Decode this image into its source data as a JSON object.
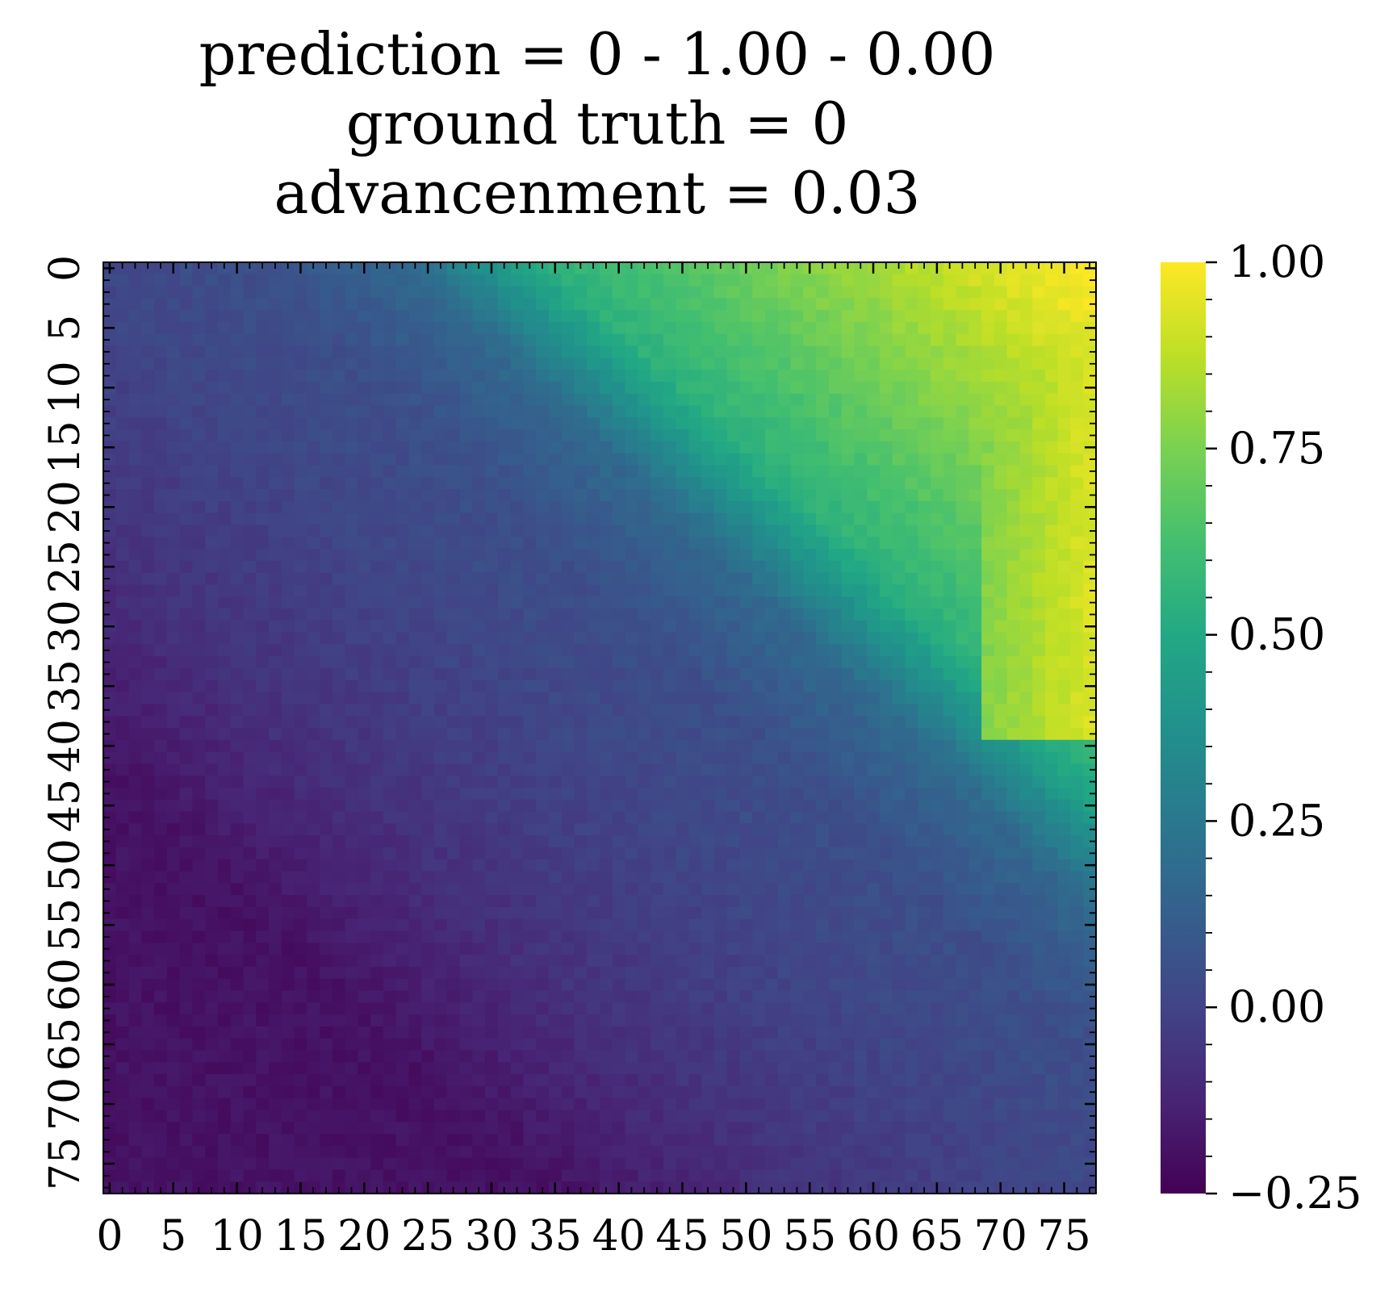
{
  "chart_data": {
    "type": "heatmap",
    "title_lines": [
      "prediction = 0 - 1.00 - 0.00",
      "ground truth = 0",
      "advancenment = 0.03"
    ],
    "xlabel": "",
    "ylabel": "",
    "grid_size": [
      78,
      78
    ],
    "x_tick_labels": [
      "0",
      "5",
      "10",
      "15",
      "20",
      "25",
      "30",
      "35",
      "40",
      "45",
      "50",
      "55",
      "60",
      "65",
      "70",
      "75"
    ],
    "y_tick_labels": [
      "0",
      "5",
      "10",
      "15",
      "20",
      "25",
      "30",
      "35",
      "40",
      "45",
      "50",
      "55",
      "60",
      "65",
      "70",
      "75"
    ],
    "colormap": "viridis",
    "vmin": -0.25,
    "vmax": 1.0,
    "colorbar_ticks": [
      "1.00",
      "0.75",
      "0.50",
      "0.25",
      "0.00",
      "−0.25"
    ],
    "colorbar_tick_values": [
      1.0,
      0.75,
      0.5,
      0.25,
      0.0,
      -0.25
    ],
    "value_field": {
      "description_of_trend": "diagonal gradient increasing from bottom-left to top-right",
      "min_region_value": -0.22,
      "max_region_value": 0.98
    },
    "grid": false,
    "legend": "colorbar right"
  }
}
